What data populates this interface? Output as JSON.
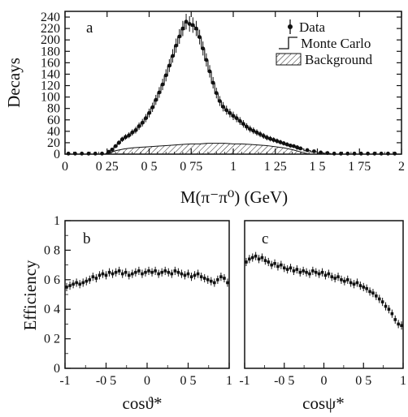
{
  "chart_data": [
    {
      "panel": "a",
      "type": "line",
      "xlabel": "M(π⁻π⁰)  (GeV)",
      "ylabel": "Decays",
      "xlim": [
        0,
        2
      ],
      "ylim": [
        0,
        250
      ],
      "x_ticks": [
        "0",
        "0 25",
        "0 5",
        "0 75",
        "1",
        "1 25",
        "1 5",
        "1 75",
        "2"
      ],
      "y_ticks": [
        "0",
        "20",
        "40",
        "60",
        "80",
        "100",
        "120",
        "140",
        "160",
        "180",
        "200",
        "220",
        "240"
      ],
      "legend": {
        "position": "top-right",
        "items": [
          "Data",
          "Monte Carlo",
          "Background"
        ]
      },
      "series": [
        {
          "name": "Data",
          "style": "points-with-errors",
          "x": [
            0.02,
            0.06,
            0.1,
            0.14,
            0.18,
            0.22,
            0.26,
            0.28,
            0.3,
            0.32,
            0.34,
            0.36,
            0.38,
            0.4,
            0.42,
            0.44,
            0.46,
            0.48,
            0.5,
            0.52,
            0.54,
            0.56,
            0.58,
            0.6,
            0.62,
            0.64,
            0.66,
            0.68,
            0.7,
            0.72,
            0.74,
            0.76,
            0.78,
            0.8,
            0.82,
            0.84,
            0.86,
            0.88,
            0.9,
            0.92,
            0.94,
            0.96,
            0.98,
            1.0,
            1.02,
            1.04,
            1.06,
            1.08,
            1.1,
            1.12,
            1.14,
            1.16,
            1.18,
            1.2,
            1.22,
            1.24,
            1.26,
            1.28,
            1.3,
            1.32,
            1.34,
            1.36,
            1.38,
            1.4,
            1.44,
            1.48,
            1.52,
            1.56,
            1.6,
            1.64,
            1.68,
            1.72,
            1.76,
            1.8,
            1.84,
            1.88,
            1.92,
            1.96
          ],
          "y": [
            1,
            1,
            1,
            1,
            1,
            1,
            4,
            8,
            14,
            20,
            26,
            30,
            33,
            38,
            42,
            49,
            55,
            63,
            72,
            82,
            95,
            108,
            122,
            138,
            155,
            172,
            190,
            206,
            220,
            232,
            228,
            226,
            220,
            205,
            185,
            165,
            145,
            125,
            107,
            93,
            83,
            77,
            72,
            67,
            63,
            58,
            53,
            48,
            44,
            41,
            38,
            35,
            32,
            29,
            27,
            25,
            23,
            21,
            19,
            17,
            15,
            14,
            12,
            10,
            7,
            5,
            3,
            2,
            1,
            1,
            1,
            1,
            1,
            1,
            1,
            1,
            1,
            1
          ]
        },
        {
          "name": "Monte Carlo",
          "style": "histogram",
          "x": [
            0.02,
            0.06,
            0.1,
            0.14,
            0.18,
            0.22,
            0.26,
            0.28,
            0.3,
            0.32,
            0.34,
            0.36,
            0.38,
            0.4,
            0.42,
            0.44,
            0.46,
            0.48,
            0.5,
            0.52,
            0.54,
            0.56,
            0.58,
            0.6,
            0.62,
            0.64,
            0.66,
            0.68,
            0.7,
            0.72,
            0.74,
            0.76,
            0.78,
            0.8,
            0.82,
            0.84,
            0.86,
            0.88,
            0.9,
            0.92,
            0.94,
            0.96,
            0.98,
            1.0,
            1.02,
            1.04,
            1.06,
            1.08,
            1.1,
            1.12,
            1.14,
            1.16,
            1.18,
            1.2,
            1.22,
            1.24,
            1.26,
            1.28,
            1.3,
            1.32,
            1.34,
            1.36,
            1.38,
            1.4,
            1.44,
            1.48,
            1.52,
            1.56,
            1.6,
            1.64,
            1.68,
            1.72,
            1.76,
            1.8,
            1.84,
            1.88,
            1.92,
            1.96
          ],
          "y": [
            0,
            0,
            0,
            0,
            0,
            0,
            3,
            7,
            13,
            19,
            25,
            29,
            32,
            37,
            41,
            48,
            54,
            62,
            71,
            81,
            94,
            107,
            121,
            137,
            154,
            171,
            189,
            205,
            218,
            230,
            228,
            224,
            218,
            204,
            184,
            164,
            144,
            124,
            106,
            92,
            82,
            76,
            71,
            66,
            62,
            57,
            52,
            47,
            43,
            40,
            37,
            34,
            31,
            28,
            26,
            24,
            22,
            20,
            18,
            16,
            14,
            13,
            11,
            9,
            6,
            4,
            2,
            1,
            0,
            0,
            0,
            0,
            0,
            0,
            0,
            0,
            0,
            0
          ]
        },
        {
          "name": "Background",
          "style": "hatched-area",
          "x": [
            0.25,
            0.3,
            0.35,
            0.4,
            0.45,
            0.5,
            0.55,
            0.6,
            0.65,
            0.7,
            0.75,
            0.8,
            0.85,
            0.9,
            0.95,
            1.0,
            1.05,
            1.1,
            1.15,
            1.2,
            1.25,
            1.3,
            1.35,
            1.4,
            1.45
          ],
          "y": [
            0,
            6,
            9,
            11,
            12,
            13,
            14,
            15,
            16,
            17,
            18,
            18,
            19,
            19,
            19,
            18,
            18,
            17,
            16,
            15,
            13,
            11,
            8,
            4,
            0
          ]
        }
      ]
    },
    {
      "panel": "b",
      "type": "scatter",
      "xlabel": "cosϑ*",
      "ylabel": "Efficiency",
      "xlim": [
        -1,
        1
      ],
      "ylim": [
        0,
        1
      ],
      "x_ticks": [
        "-1",
        "-0 5",
        "0",
        "0 5",
        "1"
      ],
      "y_ticks": [
        "0",
        "0 2",
        "0 4",
        "0 6",
        "0 8",
        "1"
      ],
      "series": [
        {
          "name": "Efficiency",
          "x": [
            -0.98,
            -0.94,
            -0.9,
            -0.86,
            -0.82,
            -0.78,
            -0.74,
            -0.7,
            -0.66,
            -0.62,
            -0.58,
            -0.54,
            -0.5,
            -0.46,
            -0.42,
            -0.38,
            -0.34,
            -0.3,
            -0.26,
            -0.22,
            -0.18,
            -0.14,
            -0.1,
            -0.06,
            -0.02,
            0.02,
            0.06,
            0.1,
            0.14,
            0.18,
            0.22,
            0.26,
            0.3,
            0.34,
            0.38,
            0.42,
            0.46,
            0.5,
            0.54,
            0.58,
            0.62,
            0.66,
            0.7,
            0.74,
            0.78,
            0.82,
            0.86,
            0.9,
            0.94,
            0.98
          ],
          "y": [
            0.55,
            0.56,
            0.57,
            0.58,
            0.57,
            0.58,
            0.59,
            0.6,
            0.62,
            0.61,
            0.63,
            0.64,
            0.63,
            0.65,
            0.64,
            0.65,
            0.66,
            0.64,
            0.65,
            0.63,
            0.64,
            0.65,
            0.66,
            0.64,
            0.65,
            0.66,
            0.65,
            0.66,
            0.64,
            0.65,
            0.66,
            0.65,
            0.64,
            0.66,
            0.65,
            0.64,
            0.63,
            0.64,
            0.62,
            0.63,
            0.64,
            0.62,
            0.61,
            0.6,
            0.59,
            0.58,
            0.6,
            0.62,
            0.61,
            0.58
          ]
        }
      ]
    },
    {
      "panel": "c",
      "type": "scatter",
      "xlabel": "cosψ*",
      "xlim": [
        -1,
        1
      ],
      "ylim": [
        0,
        1
      ],
      "x_ticks": [
        "-1",
        "-0 5",
        "0",
        "0 5",
        "1"
      ],
      "series": [
        {
          "name": "Efficiency",
          "x": [
            -0.98,
            -0.94,
            -0.9,
            -0.86,
            -0.82,
            -0.78,
            -0.74,
            -0.7,
            -0.66,
            -0.62,
            -0.58,
            -0.54,
            -0.5,
            -0.46,
            -0.42,
            -0.38,
            -0.34,
            -0.3,
            -0.26,
            -0.22,
            -0.18,
            -0.14,
            -0.1,
            -0.06,
            -0.02,
            0.02,
            0.06,
            0.1,
            0.14,
            0.18,
            0.22,
            0.26,
            0.3,
            0.34,
            0.38,
            0.42,
            0.46,
            0.5,
            0.54,
            0.58,
            0.62,
            0.66,
            0.7,
            0.74,
            0.78,
            0.82,
            0.86,
            0.9,
            0.94,
            0.98
          ],
          "y": [
            0.72,
            0.74,
            0.75,
            0.76,
            0.74,
            0.75,
            0.73,
            0.72,
            0.7,
            0.71,
            0.69,
            0.7,
            0.68,
            0.67,
            0.68,
            0.66,
            0.67,
            0.65,
            0.66,
            0.65,
            0.64,
            0.66,
            0.65,
            0.64,
            0.65,
            0.63,
            0.64,
            0.62,
            0.61,
            0.62,
            0.6,
            0.59,
            0.6,
            0.58,
            0.57,
            0.58,
            0.56,
            0.55,
            0.54,
            0.52,
            0.51,
            0.49,
            0.47,
            0.45,
            0.42,
            0.4,
            0.37,
            0.33,
            0.3,
            0.29
          ]
        }
      ]
    }
  ]
}
